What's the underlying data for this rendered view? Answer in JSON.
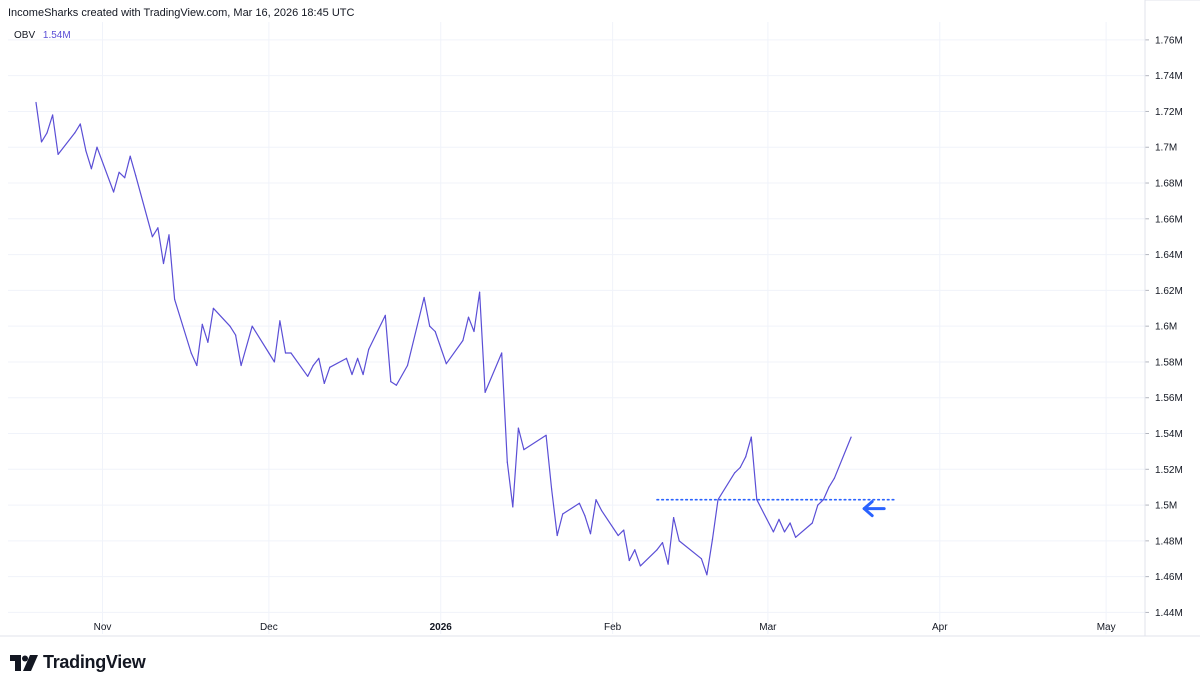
{
  "header": {
    "attribution": "IncomeSharks created with TradingView.com, Mar 16, 2026 18:45 UTC"
  },
  "legend": {
    "indicator": "OBV",
    "value": "1.54M"
  },
  "branding": {
    "logo_text": "TradingView",
    "logo_icon": "tradingview-logo-icon"
  },
  "colors": {
    "line": "#5b4fd6",
    "accent_arrow": "#2962ff",
    "grid": "#f0f3fa",
    "border": "#e0e3eb",
    "text": "#131722"
  },
  "chart_data": {
    "type": "line",
    "title": "",
    "series": [
      {
        "name": "OBV",
        "x": [
          "Oct 20",
          "Oct 21",
          "Oct 22",
          "Oct 23",
          "Oct 24",
          "Oct 27",
          "Oct 28",
          "Oct 29",
          "Oct 30",
          "Oct 31",
          "Nov 3",
          "Nov 4",
          "Nov 5",
          "Nov 6",
          "Nov 7",
          "Nov 10",
          "Nov 11",
          "Nov 12",
          "Nov 13",
          "Nov 14",
          "Nov 17",
          "Nov 18",
          "Nov 19",
          "Nov 20",
          "Nov 21",
          "Nov 24",
          "Nov 25",
          "Nov 26",
          "Nov 28",
          "Dec 1",
          "Dec 2",
          "Dec 3",
          "Dec 4",
          "Dec 5",
          "Dec 8",
          "Dec 9",
          "Dec 10",
          "Dec 11",
          "Dec 12",
          "Dec 15",
          "Dec 16",
          "Dec 17",
          "Dec 18",
          "Dec 19",
          "Dec 22",
          "Dec 23",
          "Dec 24",
          "Dec 26",
          "Dec 29",
          "Dec 30",
          "Dec 31",
          "Jan 2",
          "Jan 5",
          "Jan 6",
          "Jan 7",
          "Jan 8",
          "Jan 9",
          "Jan 12",
          "Jan 13",
          "Jan 14",
          "Jan 15",
          "Jan 16",
          "Jan 20",
          "Jan 21",
          "Jan 22",
          "Jan 23",
          "Jan 26",
          "Jan 27",
          "Jan 28",
          "Jan 29",
          "Jan 30",
          "Feb 2",
          "Feb 3",
          "Feb 4",
          "Feb 5",
          "Feb 6",
          "Feb 9",
          "Feb 10",
          "Feb 11",
          "Feb 12",
          "Feb 13",
          "Feb 17",
          "Feb 18",
          "Feb 19",
          "Feb 20",
          "Feb 23",
          "Feb 24",
          "Feb 25",
          "Feb 26",
          "Feb 27",
          "Mar 2",
          "Mar 3",
          "Mar 4",
          "Mar 5",
          "Mar 6",
          "Mar 9",
          "Mar 10",
          "Mar 11",
          "Mar 12",
          "Mar 13",
          "Mar 16"
        ],
        "values": [
          1.725,
          1.703,
          1.708,
          1.718,
          1.696,
          1.708,
          1.713,
          1.698,
          1.688,
          1.7,
          1.675,
          1.686,
          1.683,
          1.695,
          1.684,
          1.65,
          1.655,
          1.635,
          1.651,
          1.615,
          1.585,
          1.578,
          1.601,
          1.591,
          1.61,
          1.6,
          1.595,
          1.578,
          1.6,
          1.585,
          1.58,
          1.603,
          1.585,
          1.585,
          1.572,
          1.578,
          1.582,
          1.568,
          1.577,
          1.582,
          1.573,
          1.582,
          1.573,
          1.587,
          1.606,
          1.569,
          1.567,
          1.578,
          1.616,
          1.6,
          1.597,
          1.579,
          1.592,
          1.605,
          1.597,
          1.619,
          1.563,
          1.585,
          1.524,
          1.499,
          1.543,
          1.531,
          1.539,
          1.509,
          1.483,
          1.495,
          1.501,
          1.494,
          1.484,
          1.503,
          1.497,
          1.483,
          1.486,
          1.469,
          1.475,
          1.466,
          1.475,
          1.479,
          1.467,
          1.493,
          1.48,
          1.47,
          1.461,
          1.481,
          1.503,
          1.518,
          1.521,
          1.527,
          1.538,
          1.503,
          1.485,
          1.492,
          1.485,
          1.49,
          1.482,
          1.49,
          1.5,
          1.503,
          1.51,
          1.515,
          1.538
        ]
      }
    ],
    "x_axis_labels": [
      "Nov",
      "Dec",
      "2026",
      "Feb",
      "Mar",
      "Apr",
      "May"
    ],
    "y_axis_labels": [
      "1.76M",
      "1.74M",
      "1.72M",
      "1.7M",
      "1.68M",
      "1.66M",
      "1.64M",
      "1.62M",
      "1.6M",
      "1.58M",
      "1.56M",
      "1.54M",
      "1.52M",
      "1.5M",
      "1.48M",
      "1.46M",
      "1.44M"
    ],
    "ylim": [
      1.438,
      1.77
    ],
    "annotations": [
      {
        "type": "horizontal-dotted-line",
        "y": 1.503,
        "from": "Feb 9",
        "to": "Mar 24"
      },
      {
        "type": "arrow-left",
        "y": 1.498,
        "at": "Mar 18"
      }
    ],
    "grid": true,
    "legend_position": "top-left"
  }
}
